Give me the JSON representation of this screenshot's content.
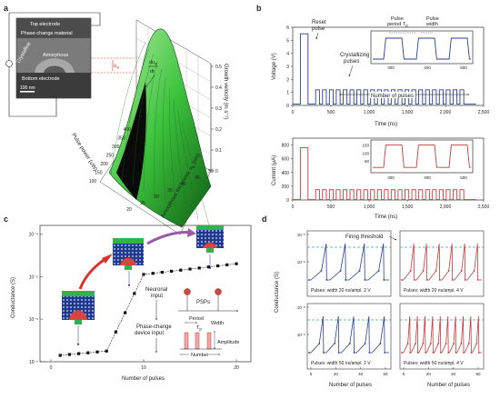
{
  "figure": {
    "panel_labels": {
      "a": "a",
      "b": "b",
      "c": "c",
      "d": "d"
    }
  },
  "panel_a": {
    "inset_labels": {
      "top_electrode": "Top electrode",
      "phase_change_material": "Phase-change material",
      "crystalline": "Crystalline",
      "amorphous": "Amorphous",
      "bottom_electrode": "Bottom electrode",
      "scale_bar": "100 nm"
    },
    "annotations": {
      "ua": "u",
      "ua_sub": "a",
      "du": "du",
      "du_sub": "a",
      "dt": "dt"
    },
    "axes": {
      "z_label": "Growth velocity (m s⁻¹)",
      "pulse_power_label": "Pulse power (uW)",
      "thickness_label": "Amorphous thickness, u",
      "thickness_sub": "a",
      "thickness_unit": "(nm)"
    },
    "z_ticks": [
      "0",
      "0.1",
      "0.2",
      "0.3",
      "0.4",
      "0.5"
    ],
    "power_ticks": [
      "400",
      "350",
      "300",
      "250",
      "200",
      "150",
      "100"
    ],
    "thickness_ticks": [
      "20",
      "25",
      "30",
      "35",
      "40",
      "45",
      "50"
    ]
  },
  "panel_b": {
    "top": {
      "ylabel": "Voltage (V)",
      "xlabel": "Time (ns)",
      "yticks": [
        "0",
        "1",
        "2",
        "3",
        "4",
        "5",
        "6"
      ],
      "xticks": [
        "0",
        "500",
        "1,000",
        "1,500",
        "2,000",
        "2,500"
      ],
      "reset_label": [
        "Reset",
        "pulse"
      ],
      "crystallizing_label": [
        "Crystallizing",
        "pulses"
      ],
      "number_label": "Number of pulses",
      "inset": {
        "period_label": [
          "Pulse",
          "period T"
        ],
        "period_sub": "p",
        "width_label": [
          "Pulse",
          "width"
        ],
        "xticks": [
          "300",
          "400",
          "500"
        ]
      }
    },
    "bottom": {
      "ylabel": "Current (μA)",
      "xlabel": "Time (ns)",
      "yticks": [
        "0",
        "200",
        "400",
        "600",
        "800"
      ],
      "xticks": [
        "0",
        "500",
        "1,000",
        "1,500",
        "2,000",
        "2,500"
      ],
      "inset": {
        "yticks": [
          "50",
          "100",
          "150"
        ],
        "xticks": [
          "300",
          "400",
          "500"
        ]
      }
    }
  },
  "panel_c": {
    "ylabel": "Conductance (S)",
    "xlabel": "Number of pulses",
    "yticks": [
      "10⁻⁴",
      "10⁻⁵",
      "10⁻⁶",
      "10⁻⁷"
    ],
    "xticks": [
      "0",
      "10",
      "20"
    ],
    "labels": {
      "neuronal_input": [
        "Neuronal",
        "input"
      ],
      "phase_change_input": [
        "Phase-change",
        "device input"
      ],
      "psps": "PSPs",
      "period": "Period",
      "tp": "T",
      "tp_sub": "p",
      "width": "Width",
      "amplitude": "Amplitude",
      "number": "Number"
    }
  },
  "panel_d": {
    "ylabel": "Conductance (S)",
    "xlabel": "Number of pulses",
    "threshold_label": "Firing threshold",
    "yticks_top": [
      "10⁻⁵",
      "10⁻⁶"
    ],
    "yticks_bottom": [
      "10⁻⁵",
      "10⁻⁶"
    ],
    "xticks": [
      "0",
      "20",
      "40",
      "60"
    ],
    "subplot_labels": [
      "Pulses: width 20 ns/ampl. 2 V",
      "Pulses: width 20 ns/ampl. 4 V",
      "Pulses: width 50 ns/ampl. 2 V",
      "Pulses: width 50 ns/ampl. 4 V"
    ],
    "colors": {
      "blue_series": "#2b3f8c",
      "red_series": "#c43a3a",
      "threshold": "#3aa39a"
    }
  },
  "colors": {
    "surface_green": "#3cc23c",
    "device_green": "#2fb34a",
    "crystal_red": "#d9443f",
    "arrow_red": "#d8322b",
    "arrow_purple": "#9b5aa6",
    "trace_blue": "#2b3f8c",
    "trace_red": "#c83a3a"
  }
}
